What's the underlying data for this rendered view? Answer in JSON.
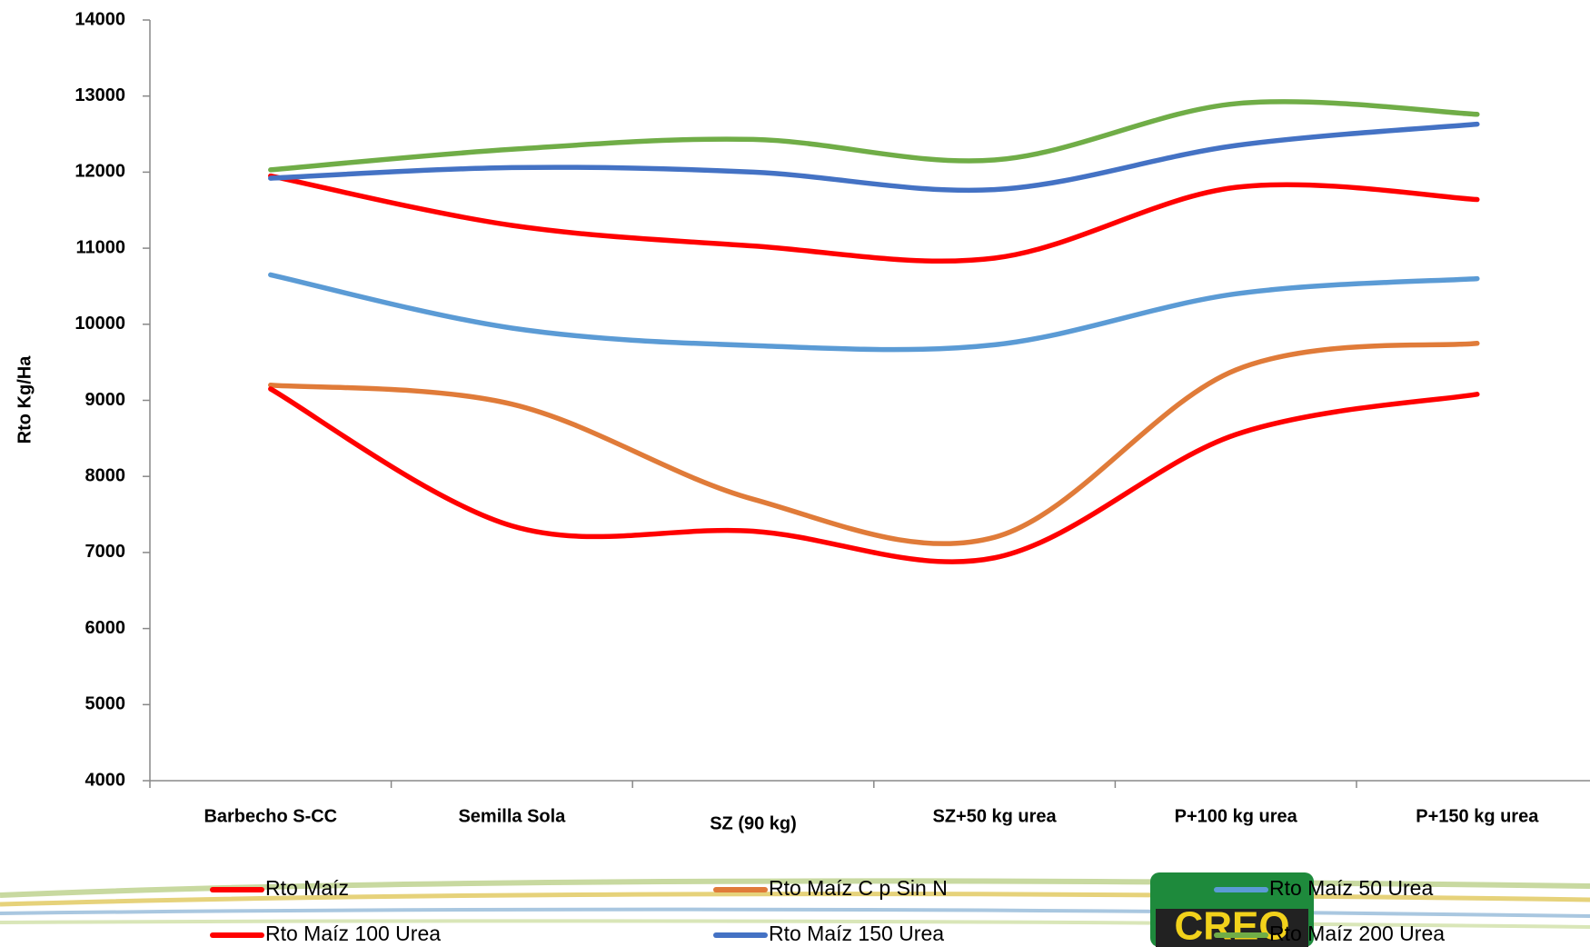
{
  "chart_data": {
    "type": "line",
    "y_label": "Rto Kg/Ha",
    "categories": [
      "Barbecho S-CC",
      "Semilla Sola",
      "SZ (90 kg)",
      "SZ+50 kg urea",
      "P+100 kg urea",
      "P+150 kg urea"
    ],
    "series": [
      {
        "name": "Rto Maíz",
        "color": "#ff0000",
        "values": [
          11950,
          11300,
          11030,
          10870,
          11800,
          11640
        ]
      },
      {
        "name": "Rto Maíz C p Sin N",
        "color": "#e07b39",
        "values": [
          9200,
          8950,
          7700,
          7200,
          9400,
          9750
        ]
      },
      {
        "name": "Rto Maíz 50 Urea",
        "color": "#5b9bd5",
        "values": [
          10650,
          9950,
          9720,
          9730,
          10400,
          10600
        ]
      },
      {
        "name": "Rto Maíz 100 Urea",
        "color": "#ff0000",
        "values": [
          9150,
          7350,
          7280,
          6930,
          8550,
          9080
        ]
      },
      {
        "name": "Rto Maíz 150 Urea",
        "color": "#4472c4",
        "values": [
          11920,
          12060,
          12000,
          11770,
          12350,
          12630
        ]
      },
      {
        "name": "Rto Maíz 200 Urea",
        "color": "#70ad47",
        "values": [
          12030,
          12300,
          12430,
          12160,
          12900,
          12760
        ]
      }
    ],
    "ylim": [
      4000,
      14000
    ],
    "yticks": [
      4000,
      5000,
      6000,
      7000,
      8000,
      9000,
      10000,
      11000,
      12000,
      13000,
      14000
    ],
    "smooth": true,
    "logo_text": "CREO"
  }
}
